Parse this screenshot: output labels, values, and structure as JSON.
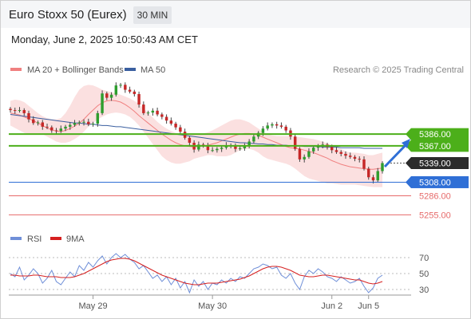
{
  "header": {
    "title": "Euro Stoxx 50 (Eurex)",
    "timeframe": "30 MIN",
    "datetime": "Monday, June 2, 2025 10:50:43 AM CET"
  },
  "legend": {
    "ma20": "MA 20 + Bollinger Bands",
    "ma50": "MA 50",
    "copyright": "Research © 2025 Trading Central",
    "rsi": "RSI",
    "rsi_ma": "9MA"
  },
  "colors": {
    "ma20": "#f08080",
    "ma50": "#3a5fa0",
    "bollinger_fill": "#fbe0e0",
    "resistance": "#4caf1a",
    "support": "#2f6fd6",
    "support_extra": "#e66a6a",
    "price_badge": "#2b2b2b",
    "candle_up": "#2e9e2e",
    "candle_down": "#c62828",
    "rsi": "#6f8fd8",
    "rsi_ma": "#d62020",
    "arrow": "#2f6fd6"
  },
  "chart_data": {
    "type": "candlestick",
    "price_ylim": [
      5240,
      5460
    ],
    "levels": [
      {
        "label": "5386.00",
        "value": 5386,
        "kind": "resistance"
      },
      {
        "label": "5367.00",
        "value": 5367,
        "kind": "resistance"
      },
      {
        "label": "5339.00",
        "value": 5339,
        "kind": "last"
      },
      {
        "label": "5308.00",
        "value": 5308,
        "kind": "support"
      },
      {
        "label": "5286.00",
        "value": 5286,
        "kind": "support_extra"
      },
      {
        "label": "5255.00",
        "value": 5255,
        "kind": "support_extra"
      }
    ],
    "x_ticks": [
      "May 29",
      "May 30",
      "Jun 2",
      "Jun 5"
    ],
    "x_tick_index": [
      18,
      44,
      70,
      78
    ],
    "n_bars": 82,
    "closes": [
      5425,
      5424,
      5425,
      5420,
      5410,
      5404,
      5405,
      5398,
      5397,
      5392,
      5391,
      5395,
      5398,
      5401,
      5404,
      5405,
      5406,
      5402,
      5403,
      5420,
      5452,
      5445,
      5450,
      5465,
      5466,
      5458,
      5455,
      5451,
      5434,
      5420,
      5421,
      5424,
      5418,
      5414,
      5408,
      5403,
      5397,
      5390,
      5380,
      5372,
      5361,
      5369,
      5368,
      5360,
      5360,
      5362,
      5364,
      5368,
      5367,
      5362,
      5363,
      5368,
      5374,
      5382,
      5388,
      5395,
      5400,
      5402,
      5400,
      5398,
      5392,
      5382,
      5362,
      5345,
      5349,
      5358,
      5364,
      5366,
      5369,
      5365,
      5360,
      5357,
      5354,
      5351,
      5349,
      5346,
      5345,
      5330,
      5316,
      5311,
      5326,
      5339
    ],
    "ma20": [
      5420,
      5419,
      5417,
      5414,
      5411,
      5408,
      5404,
      5400,
      5396,
      5393,
      5391,
      5390,
      5392,
      5395,
      5399,
      5404,
      5410,
      5418,
      5425,
      5432,
      5437,
      5440,
      5441,
      5440,
      5438,
      5434,
      5429,
      5423,
      5416,
      5410,
      5404,
      5398,
      5392,
      5386,
      5381,
      5376,
      5372,
      5369,
      5367,
      5366,
      5365,
      5366,
      5367,
      5368,
      5370,
      5372,
      5375,
      5378,
      5381,
      5384,
      5386,
      5387,
      5387,
      5386,
      5384,
      5381,
      5378,
      5375,
      5372,
      5369,
      5366,
      5364,
      5363,
      5362,
      5360,
      5358,
      5356,
      5353,
      5350,
      5347,
      5343,
      5340,
      5337,
      5335,
      5333,
      5332,
      5331,
      5330,
      5329,
      5329,
      5330,
      5331
    ],
    "ma50": [
      5418,
      5417,
      5416,
      5415,
      5414,
      5413,
      5412,
      5411,
      5410,
      5409,
      5408,
      5407,
      5406,
      5405,
      5404,
      5404,
      5403,
      5402,
      5402,
      5401,
      5400,
      5400,
      5399,
      5398,
      5398,
      5397,
      5396,
      5395,
      5394,
      5393,
      5392,
      5391,
      5390,
      5389,
      5388,
      5387,
      5386,
      5385,
      5384,
      5383,
      5382,
      5381,
      5380,
      5379,
      5378,
      5377,
      5376,
      5375,
      5374,
      5373,
      5372,
      5372,
      5371,
      5371,
      5370,
      5370,
      5369,
      5369,
      5368,
      5368,
      5368,
      5367,
      5367,
      5367,
      5366,
      5366,
      5366,
      5366,
      5365,
      5365,
      5365,
      5365,
      5364,
      5364,
      5364,
      5364,
      5364,
      5363,
      5363,
      5363,
      5363,
      5363
    ],
    "bb_upper": [
      5440,
      5442,
      5441,
      5438,
      5432,
      5426,
      5420,
      5415,
      5412,
      5410,
      5410,
      5412,
      5420,
      5432,
      5446,
      5458,
      5464,
      5466,
      5465,
      5462,
      5458,
      5456,
      5454,
      5452,
      5450,
      5447,
      5444,
      5440,
      5435,
      5428,
      5420,
      5413,
      5406,
      5400,
      5395,
      5391,
      5388,
      5386,
      5385,
      5385,
      5385,
      5386,
      5387,
      5389,
      5392,
      5396,
      5400,
      5404,
      5408,
      5410,
      5410,
      5408,
      5405,
      5400,
      5395,
      5390,
      5386,
      5384,
      5383,
      5383,
      5383,
      5383,
      5382,
      5381,
      5380,
      5379,
      5378,
      5376,
      5374,
      5371,
      5368,
      5365,
      5362,
      5358,
      5356,
      5356,
      5355,
      5354,
      5352,
      5352,
      5354,
      5356
    ],
    "bb_lower": [
      5400,
      5396,
      5392,
      5388,
      5386,
      5386,
      5387,
      5386,
      5382,
      5378,
      5374,
      5372,
      5372,
      5374,
      5378,
      5383,
      5390,
      5398,
      5404,
      5410,
      5414,
      5418,
      5420,
      5421,
      5420,
      5418,
      5414,
      5408,
      5400,
      5390,
      5380,
      5370,
      5360,
      5350,
      5344,
      5340,
      5338,
      5338,
      5340,
      5342,
      5346,
      5348,
      5350,
      5352,
      5352,
      5350,
      5350,
      5350,
      5352,
      5356,
      5360,
      5362,
      5362,
      5360,
      5356,
      5350,
      5346,
      5344,
      5342,
      5340,
      5338,
      5335,
      5330,
      5324,
      5318,
      5314,
      5312,
      5310,
      5308,
      5306,
      5306,
      5305,
      5304,
      5304,
      5304,
      5304,
      5303,
      5302,
      5301,
      5300,
      5300,
      5300
    ],
    "rsi": [
      50,
      46,
      58,
      42,
      48,
      56,
      50,
      38,
      44,
      54,
      40,
      36,
      44,
      52,
      46,
      60,
      54,
      64,
      58,
      66,
      72,
      62,
      70,
      75,
      70,
      74,
      68,
      64,
      56,
      60,
      52,
      44,
      48,
      40,
      46,
      36,
      44,
      32,
      40,
      26,
      42,
      34,
      40,
      30,
      38,
      36,
      42,
      38,
      44,
      40,
      46,
      44,
      50,
      56,
      58,
      62,
      60,
      56,
      58,
      48,
      44,
      50,
      38,
      30,
      46,
      54,
      50,
      56,
      52,
      46,
      44,
      40,
      46,
      42,
      38,
      40,
      44,
      34,
      26,
      32,
      44,
      48
    ],
    "rsi_ma": [
      48,
      48,
      47,
      47,
      47,
      48,
      48,
      47,
      46,
      46,
      46,
      45,
      45,
      45,
      46,
      48,
      50,
      53,
      56,
      59,
      62,
      65,
      67,
      68,
      69,
      69,
      68,
      66,
      63,
      60,
      57,
      54,
      51,
      48,
      46,
      44,
      42,
      40,
      38,
      37,
      36,
      36,
      37,
      38,
      38,
      38,
      39,
      40,
      41,
      42,
      43,
      45,
      47,
      50,
      53,
      56,
      58,
      59,
      59,
      58,
      56,
      54,
      51,
      48,
      47,
      46,
      46,
      47,
      48,
      48,
      47,
      46,
      45,
      44,
      43,
      42,
      42,
      40,
      38,
      37,
      38,
      40
    ],
    "rsi_ylim": [
      20,
      80
    ],
    "rsi_ticks": [
      "70",
      "50",
      "30"
    ]
  }
}
